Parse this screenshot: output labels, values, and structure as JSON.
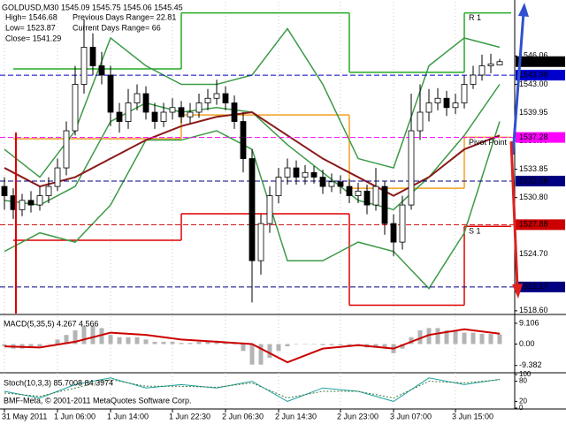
{
  "chart_data": [
    {
      "type": "candlestick",
      "title": "GOLDUSD,M30  1545.09 1545.75 1545.06 1545.45",
      "info": [
        "High= 1546.68",
        "Low= 1523.87",
        "Close= 1541.29",
        "Previous Days Range= 22.81",
        "Current Days Range= 66"
      ],
      "open": [
        1532,
        1531,
        1529.5,
        1530.5,
        1530,
        1531,
        1532,
        1534,
        1538,
        1543,
        1547,
        1545,
        1544,
        1540,
        1539,
        1541,
        1542,
        1540,
        1539,
        1540,
        1540.5,
        1539.5,
        1540,
        1541,
        1541.5,
        1542,
        1541,
        1539,
        1535,
        1524,
        1528,
        1531,
        1533,
        1534,
        1533,
        1533.5,
        1533,
        1532,
        1532.5,
        1532,
        1531,
        1531.5,
        1530,
        1532,
        1528,
        1526,
        1530,
        1538,
        1540,
        1541,
        1541.5,
        1540.5,
        1541,
        1543,
        1544,
        1545,
        1545.09
      ],
      "high": [
        1533,
        1531.8,
        1531.2,
        1531.5,
        1532,
        1533,
        1535,
        1539,
        1545,
        1550,
        1548.5,
        1546.5,
        1545,
        1541,
        1542.5,
        1543,
        1542.8,
        1541,
        1541,
        1541.5,
        1541.2,
        1541,
        1542,
        1542.5,
        1543.5,
        1542.8,
        1541.8,
        1540,
        1536,
        1529,
        1532,
        1534,
        1535,
        1534.8,
        1534.3,
        1534.2,
        1533.8,
        1533.4,
        1533.2,
        1532.8,
        1532.4,
        1532.2,
        1534,
        1532.6,
        1529,
        1531,
        1542,
        1543,
        1542.5,
        1542.6,
        1542.3,
        1542,
        1544,
        1545,
        1546.2,
        1546.3,
        1545.75
      ],
      "low": [
        1529.5,
        1528.5,
        1528.8,
        1529.2,
        1529.4,
        1530.2,
        1531.5,
        1533.2,
        1537.5,
        1542,
        1544,
        1543,
        1538.5,
        1537.8,
        1538.2,
        1540.2,
        1539.2,
        1538.2,
        1538.4,
        1539.2,
        1538.8,
        1538.8,
        1539.4,
        1540.2,
        1540.8,
        1540.2,
        1538.2,
        1533.5,
        1519.5,
        1522.5,
        1527,
        1530.2,
        1532.2,
        1532.2,
        1532.2,
        1532.3,
        1531.2,
        1531.4,
        1531.2,
        1530.2,
        1530.2,
        1529,
        1529.4,
        1526.8,
        1524.5,
        1525.2,
        1529.5,
        1537,
        1539,
        1540.2,
        1539.6,
        1539.8,
        1540.4,
        1542.5,
        1543.4,
        1544.2,
        1545.06
      ],
      "close": [
        1531,
        1529.5,
        1530.5,
        1530,
        1531,
        1532,
        1534,
        1538,
        1543,
        1547,
        1545,
        1544,
        1540,
        1539,
        1541,
        1542,
        1540,
        1539,
        1540,
        1540.5,
        1539.5,
        1540,
        1541,
        1541.5,
        1542,
        1541,
        1539,
        1535,
        1524,
        1528,
        1531,
        1533,
        1534,
        1533,
        1533.5,
        1533,
        1532,
        1532.5,
        1532,
        1531,
        1531.5,
        1530,
        1532,
        1528,
        1526,
        1530,
        1538,
        1540,
        1541,
        1541.5,
        1540.5,
        1541,
        1543,
        1544,
        1545,
        1545.2,
        1545.45
      ],
      "lines": [
        {
          "color": "#3c9a46",
          "x": [
            0,
            4,
            8,
            12,
            16,
            20,
            24,
            28,
            32,
            36,
            40,
            44,
            48,
            52,
            56
          ],
          "values": [
            1536,
            1533,
            1538,
            1548,
            1545,
            1543,
            1543,
            1544,
            1549,
            1543,
            1535,
            1534,
            1545,
            1548,
            1547
          ]
        },
        {
          "color": "#3c9a46",
          "x": [
            0,
            4,
            8,
            12,
            16,
            20,
            24,
            28,
            32,
            36,
            40,
            44,
            48,
            52,
            56
          ],
          "values": [
            1530.5,
            1530,
            1532,
            1539,
            1541,
            1540,
            1540.5,
            1540,
            1536.5,
            1533.5,
            1530.5,
            1529.5,
            1533,
            1537.5,
            1543
          ]
        },
        {
          "color": "#3c9a46",
          "x": [
            0,
            4,
            8,
            12,
            16,
            20,
            24,
            28,
            32,
            36,
            40,
            44,
            48,
            52,
            56
          ],
          "values": [
            1525,
            1527,
            1526,
            1530,
            1537,
            1537,
            1538,
            1536,
            1524,
            1524,
            1526,
            1525,
            1521,
            1527,
            1539
          ]
        },
        {
          "color": "#8b1a1a",
          "x": [
            0,
            4,
            8,
            12,
            16,
            20,
            24,
            28,
            32,
            36,
            40,
            44,
            48,
            52,
            56
          ],
          "values": [
            1534,
            1532,
            1533,
            1535,
            1537,
            1538.5,
            1539.5,
            1540,
            1537.5,
            1535,
            1533,
            1531,
            1533,
            1536,
            1537.5
          ]
        }
      ],
      "levels": [
        {
          "label": "R 1",
          "color": "#22aa22",
          "values": [
            1544.67,
            1550.7,
            1544.3,
            1550.7
          ]
        },
        {
          "label": "Pivot Point",
          "color": "#f0a020",
          "values": [
            1537.14,
            1539.7,
            1531.8,
            1537.3
          ]
        },
        {
          "label": "S 1",
          "color": "#dd0000",
          "values": [
            1526.2,
            1529.05,
            1519.2,
            1527.7
          ]
        }
      ],
      "price_lines": [
        {
          "value": 1545.45,
          "color": "#000000"
        },
        {
          "value": 1543.99,
          "color": "#0000cd"
        },
        {
          "value": 1537.28,
          "color": "#ff00ff"
        },
        {
          "value": 1532.58,
          "color": "#000080"
        },
        {
          "value": 1527.88,
          "color": "#cc0000"
        },
        {
          "value": 1521.17,
          "color": "#000080"
        }
      ],
      "ylim": [
        1518.3,
        1551.9
      ],
      "yticks": [
        1546.06,
        {
          "value": 1543,
          "label": "1543.00"
        },
        1539.95,
        {
          "value": 1536.9,
          "label": "1536.90"
        },
        1533.85,
        {
          "value": 1530.8,
          "label": "1530.80"
        },
        {
          "value": 1524.7,
          "label": "1524.70"
        },
        {
          "value": 1518.6,
          "label": "1518.60"
        }
      ],
      "xticks": [
        {
          "value": 0,
          "label": "31 May 2011"
        },
        {
          "value": 6,
          "label": "1 Jun 06:00"
        },
        {
          "value": 12,
          "label": "1 Jun 14:00"
        },
        {
          "value": 19,
          "label": "1 Jun 22:30"
        },
        {
          "value": 25,
          "label": "2 Jun 06:30"
        },
        {
          "value": 31,
          "label": "2 Jun 14:30"
        },
        {
          "value": 38,
          "label": "2 Jun 23:00"
        },
        {
          "value": 44,
          "label": "3 Jun 07:00"
        },
        {
          "value": 51,
          "label": "3 Jun 15:00"
        }
      ]
    },
    {
      "type": "macd",
      "title": "MACD(5,35,5) 4.267 4.566",
      "histogram": [
        -1,
        -2,
        -2,
        -1.5,
        -1,
        0,
        2,
        4,
        6,
        8,
        8,
        7,
        4,
        3,
        3,
        3,
        2,
        1,
        1,
        1,
        0.5,
        0.5,
        1,
        1,
        1.5,
        1,
        0,
        -3,
        -9,
        -9,
        -6,
        -3,
        -1,
        0,
        0,
        0,
        -0.5,
        -0.5,
        -0.5,
        -1,
        -1,
        -1.5,
        -1,
        -2,
        -4,
        -2,
        3,
        6,
        7,
        7,
        6,
        6,
        5,
        5,
        4.5,
        4.4,
        4.267
      ],
      "histogram_color": "#b4b4b4",
      "signal": {
        "color": "#cc0000",
        "x": [
          0,
          4,
          8,
          12,
          16,
          20,
          24,
          28,
          32,
          36,
          40,
          44,
          48,
          52,
          56
        ],
        "values": [
          -1,
          -1.5,
          1,
          5,
          4,
          2,
          1,
          0,
          -8,
          -2,
          -0.5,
          -2,
          4,
          6.5,
          4.566
        ]
      },
      "ylim": [
        -12.2,
        12.2
      ],
      "yticks": [
        9.106,
        {
          "value": 0,
          "label": "0.00"
        },
        -9.382
      ]
    },
    {
      "type": "stochastic",
      "title": "Stoch(10,3,3) 85.7008 84.3974",
      "annotation": "BMF-Meta, © 2001-2011 MetaQuotes Software Corp.",
      "lines": [
        {
          "color": "#20a0a0",
          "x": [
            0,
            4,
            8,
            12,
            16,
            20,
            24,
            28,
            32,
            36,
            40,
            44,
            48,
            52,
            56
          ],
          "values": [
            50,
            30,
            70,
            90,
            60,
            70,
            60,
            80,
            20,
            60,
            50,
            20,
            90,
            70,
            85.7008
          ]
        },
        {
          "color": "#3c7a3c",
          "x": [
            0,
            4,
            8,
            12,
            16,
            20,
            24,
            28,
            32,
            36,
            40,
            44,
            48,
            52,
            56
          ],
          "values": [
            45,
            35,
            60,
            85,
            65,
            65,
            62,
            75,
            30,
            50,
            50,
            30,
            80,
            75,
            84.3974
          ]
        }
      ],
      "ylim": [
        0,
        100
      ],
      "yticks": [
        100,
        80,
        20,
        0
      ]
    }
  ]
}
